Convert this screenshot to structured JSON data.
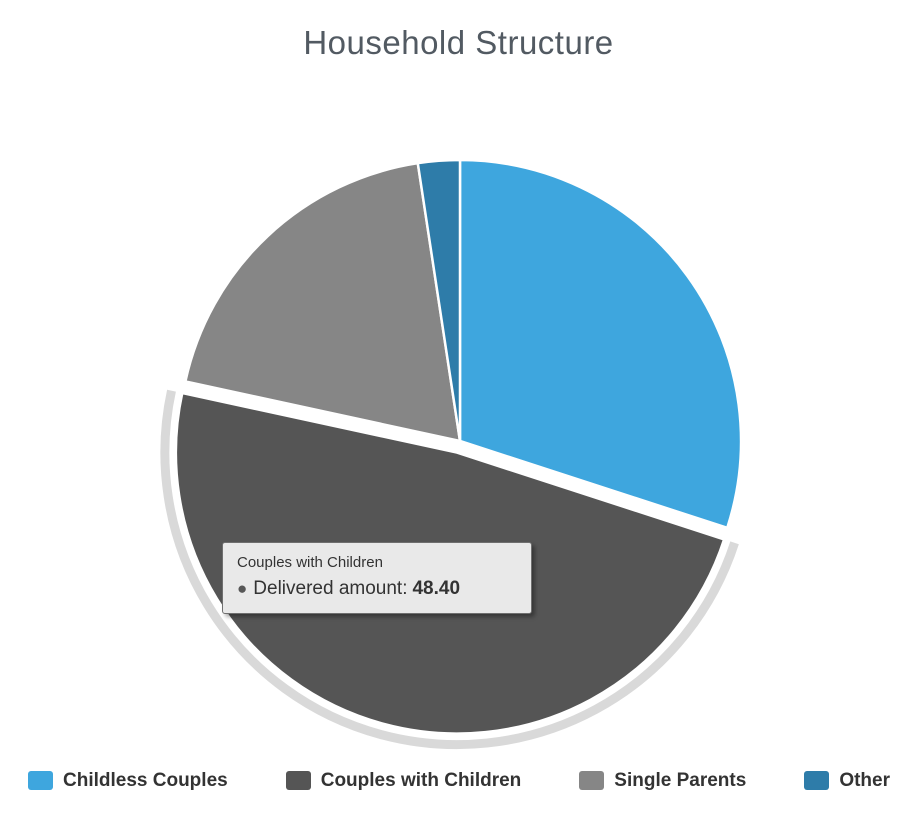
{
  "title": "Household Structure",
  "chart_data": {
    "type": "pie",
    "title": "Household Structure",
    "series_name": "Delivered amount",
    "categories": [
      "Childless Couples",
      "Couples with Children",
      "Single Parents",
      "Other"
    ],
    "values": [
      30.0,
      48.4,
      19.2,
      2.4
    ],
    "colors": [
      "#3EA6DE",
      "#555555",
      "#868686",
      "#2E7CA9"
    ],
    "halo_color": "#D9D9D9",
    "selected_index": 1,
    "start_angle_deg": 0,
    "direction": "clockwise",
    "legend_position": "bottom"
  },
  "tooltip": {
    "category": "Couples with Children",
    "bullet": "●",
    "series_label": "Delivered amount:",
    "value": "48.40"
  }
}
